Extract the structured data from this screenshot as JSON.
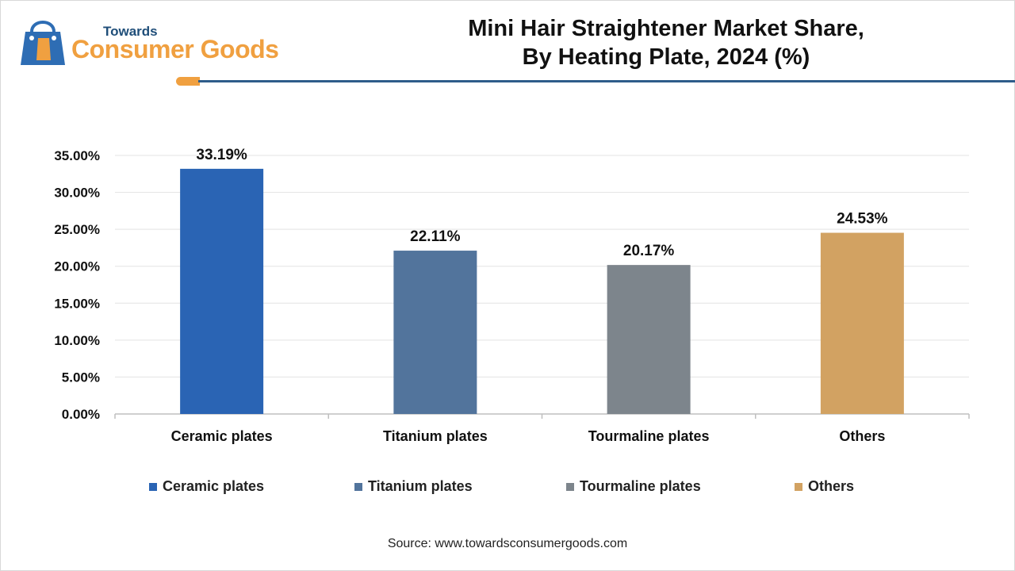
{
  "header": {
    "logo_small": "Towards",
    "logo_big": "Consumer Goods",
    "title_line1": "Mini Hair Straightener Market Share,",
    "title_line2": "By Heating Plate, 2024 (%)"
  },
  "chart_data": {
    "type": "bar",
    "title": "Mini Hair Straightener Market Share, By Heating Plate, 2024 (%)",
    "categories": [
      "Ceramic plates",
      "Titanium plates",
      "Tourmaline plates",
      "Others"
    ],
    "values": [
      33.19,
      22.11,
      20.17,
      24.53
    ],
    "value_labels": [
      "33.19%",
      "22.11%",
      "20.17%",
      "24.53%"
    ],
    "colors": [
      "#2a64b4",
      "#52749c",
      "#7d858c",
      "#d2a262"
    ],
    "ylim": [
      0,
      35
    ],
    "yticks": [
      0,
      5,
      10,
      15,
      20,
      25,
      30,
      35
    ],
    "ytick_labels": [
      "0.00%",
      "5.00%",
      "10.00%",
      "15.00%",
      "20.00%",
      "25.00%",
      "30.00%",
      "35.00%"
    ],
    "xlabel": "",
    "ylabel": "",
    "grid": true,
    "legend": "bottom"
  },
  "legend": {
    "items": [
      "Ceramic plates",
      "Titanium plates",
      "Tourmaline plates",
      "Others"
    ]
  },
  "footer": {
    "source": "Source: www.towardsconsumergoods.com"
  }
}
